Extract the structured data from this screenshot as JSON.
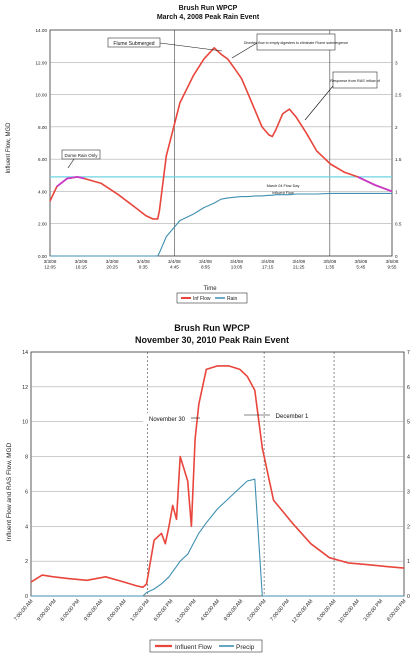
{
  "chart_data": [
    {
      "type": "line",
      "title": "Brush Run WPCP",
      "subtitle": "March 4, 2008 Peak Rain Event",
      "xlabel": "Time",
      "ylabel": "Influent Flow, MGD",
      "ylim": [
        0,
        14
      ],
      "y2lim": [
        0,
        3.5
      ],
      "yticks": [
        "0.00",
        "2.00",
        "4.00",
        "6.00",
        "8.00",
        "10.00",
        "12.00",
        "14.00"
      ],
      "y2ticks": [
        "0",
        "0.5",
        "1",
        "1.5",
        "2",
        "2.5",
        "3",
        "3.5"
      ],
      "xcategories": [
        "3/3/08 12:05",
        "3/3/08 16:15",
        "3/3/08 20:25",
        "3/4/08 0:35",
        "3/4/08 4:45",
        "3/4/08 8:55",
        "3/4/08 13:05",
        "3/4/08 17:15",
        "3/4/08 21:25",
        "3/5/08 1:35",
        "3/5/08 5:45",
        "3/5/08 9:55"
      ],
      "x": [
        0,
        0.02,
        0.05,
        0.08,
        0.1,
        0.15,
        0.2,
        0.25,
        0.28,
        0.3,
        0.315,
        0.32,
        0.34,
        0.38,
        0.42,
        0.45,
        0.48,
        0.5,
        0.52,
        0.54,
        0.56,
        0.58,
        0.6,
        0.62,
        0.64,
        0.65,
        0.66,
        0.68,
        0.7,
        0.72,
        0.75,
        0.78,
        0.82,
        0.86,
        0.9,
        0.95,
        1.0
      ],
      "series": [
        {
          "name": "Inf Flow",
          "color": "#e8463c",
          "values": [
            3.4,
            4.3,
            4.8,
            4.9,
            4.8,
            4.5,
            3.8,
            3.0,
            2.5,
            2.3,
            2.3,
            2.8,
            6.2,
            9.5,
            11.2,
            12.2,
            12.9,
            12.5,
            12.2,
            11.6,
            11.0,
            10.0,
            9.0,
            8.0,
            7.5,
            7.4,
            7.8,
            8.8,
            9.1,
            8.6,
            7.6,
            6.5,
            5.7,
            5.2,
            4.9,
            4.4,
            4.0
          ]
        },
        {
          "name": "Rain",
          "color": "#3f8fb0",
          "values": [
            0,
            0,
            0,
            0,
            0,
            0,
            0,
            0,
            0,
            0,
            0,
            0.05,
            0.3,
            0.55,
            0.65,
            0.75,
            0.82,
            0.88,
            0.9,
            0.91,
            0.92,
            0.92,
            0.93,
            0.93,
            0.94,
            0.94,
            0.95,
            0.95,
            0.95,
            0.96,
            0.96,
            0.96,
            0.97,
            0.97,
            0.97,
            0.97,
            0.97
          ]
        }
      ],
      "highlight_segments": [
        {
          "color": "#c83cc8",
          "from": 0.02,
          "to": 0.13
        },
        {
          "color": "#c83cc8",
          "from": 0.9,
          "to": 1.0
        }
      ],
      "reference_line": {
        "color": "#6fd3e3",
        "y": 4.9
      },
      "annotations": [
        "Flume Submerged",
        "Diverted flow to empty digesters to eliminate Flume submergence",
        "Response from RAS inflow of",
        "Dome Rain Only",
        "March 04 Flow Day",
        "Influent Flow"
      ],
      "legend": [
        "Inf Flow",
        "Rain"
      ],
      "legend_position": "bottom"
    },
    {
      "type": "line",
      "title": "Brush Run WPCP",
      "subtitle": "November 30, 2010 Peak Rain Event",
      "xlabel": "",
      "ylabel": "Influent Flow and RAS Flow, MGD",
      "ylim": [
        0,
        14
      ],
      "y2lim": [
        0,
        7
      ],
      "yticks": [
        "0",
        "2",
        "4",
        "6",
        "8",
        "10",
        "12",
        "14"
      ],
      "y2ticks": [
        "0",
        "1",
        "2",
        "3",
        "4",
        "5",
        "6",
        "7"
      ],
      "xcategories": [
        "7:00:00 AM",
        "9:00:00 PM",
        "6:00:00 PM",
        "9:00:00 AM",
        "8:00:00 AM",
        "1:00:00 PM",
        "6:00:00 PM",
        "11:00:00 PM",
        "4:00:00 AM",
        "9:00:00 AM",
        "2:00:00 PM",
        "7:00:00 PM",
        "12:00:00 AM",
        "5:00:00 AM",
        "10:00:00 AM",
        "3:00:00 PM",
        "8:00:00 PM"
      ],
      "x": [
        0,
        0.03,
        0.06,
        0.1,
        0.15,
        0.2,
        0.25,
        0.28,
        0.3,
        0.31,
        0.33,
        0.35,
        0.36,
        0.37,
        0.38,
        0.39,
        0.4,
        0.42,
        0.43,
        0.44,
        0.45,
        0.47,
        0.5,
        0.53,
        0.56,
        0.58,
        0.6,
        0.62,
        0.65,
        0.7,
        0.75,
        0.8,
        0.85,
        0.9,
        0.95,
        1.0
      ],
      "series": [
        {
          "name": "Influent Flow",
          "color": "#e8463c",
          "values": [
            0.8,
            1.2,
            1.1,
            1.0,
            0.9,
            1.1,
            0.8,
            0.6,
            0.5,
            0.7,
            3.2,
            3.6,
            3.0,
            4.0,
            5.2,
            4.4,
            8.0,
            6.6,
            4.0,
            9.0,
            11.0,
            13.0,
            13.2,
            13.2,
            13.0,
            12.6,
            11.8,
            8.5,
            5.5,
            4.2,
            3.0,
            2.2,
            1.9,
            1.8,
            1.7,
            1.6
          ]
        },
        {
          "name": "Precip",
          "color": "#3f8fb0",
          "values": [
            0,
            0,
            0,
            0,
            0,
            0,
            0,
            0,
            0,
            0.1,
            0.2,
            0.35,
            0.45,
            0.55,
            0.7,
            0.85,
            1.0,
            1.2,
            1.4,
            1.6,
            1.8,
            2.1,
            2.5,
            2.8,
            3.1,
            3.3,
            3.35,
            0,
            0,
            0,
            0,
            0,
            0,
            0,
            0,
            0
          ]
        }
      ],
      "annotations": [
        "November 30",
        "December 1"
      ],
      "legend": [
        "Influent Flow",
        "Precip"
      ],
      "legend_position": "bottom"
    }
  ]
}
